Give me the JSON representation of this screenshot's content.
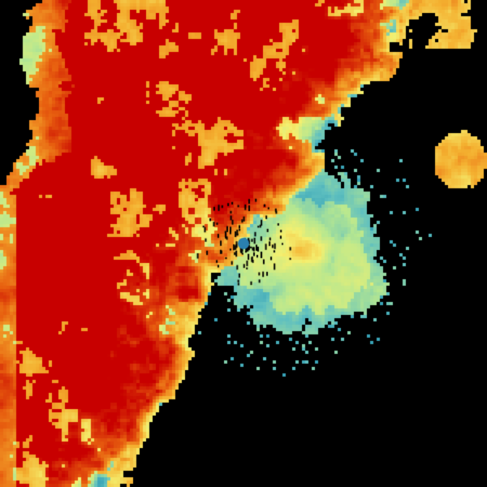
{
  "image": {
    "kind": "weather radar sweep",
    "background_color": "#000000",
    "colormap": [
      "#1f8fb0",
      "#5fc0c0",
      "#b8e890",
      "#f4f070",
      "#f4b030",
      "#e86010",
      "#c80000"
    ]
  }
}
